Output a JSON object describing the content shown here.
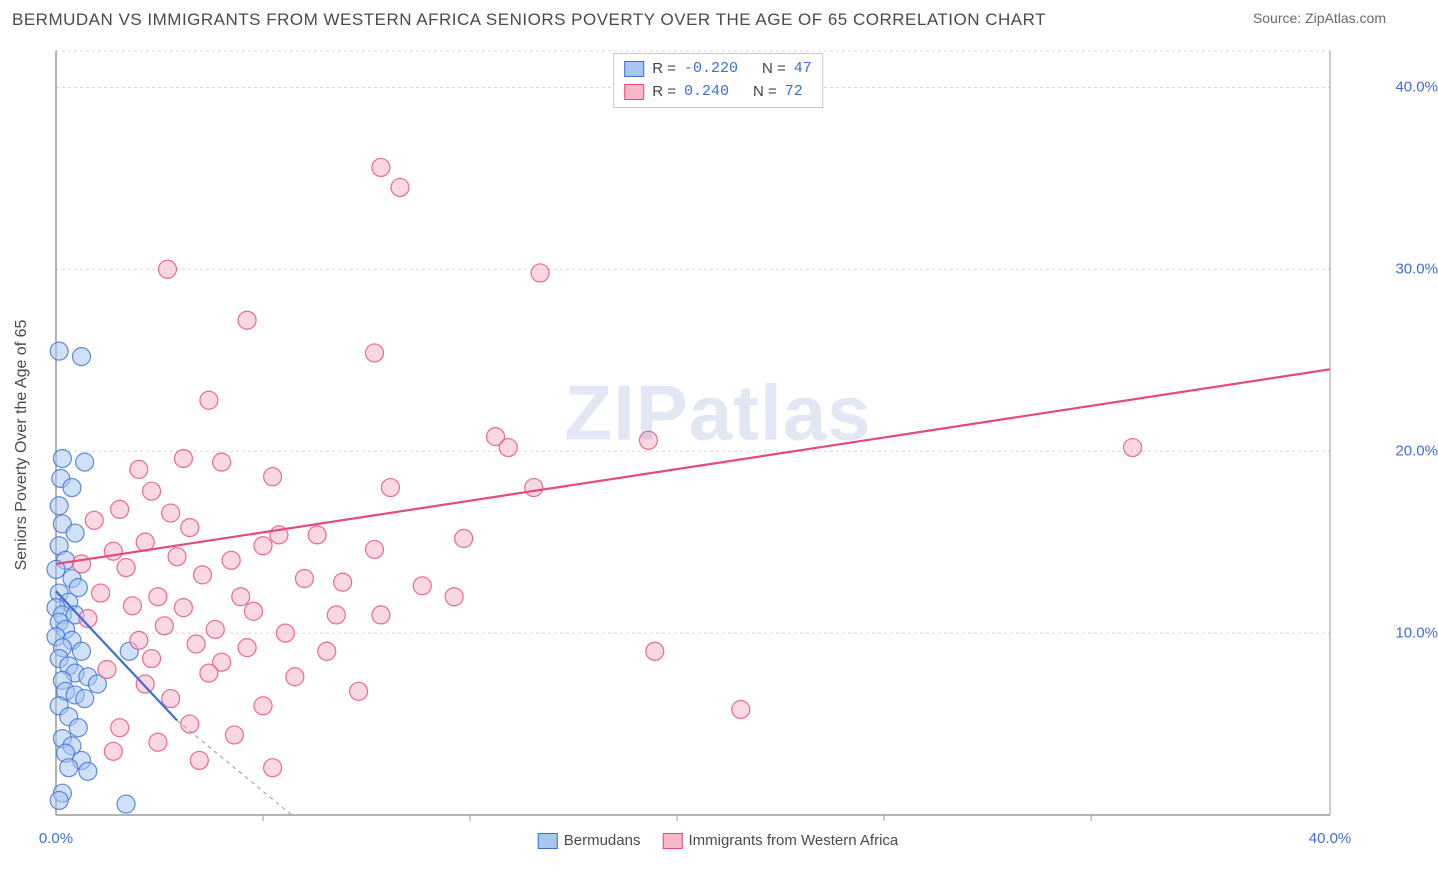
{
  "title": "BERMUDAN VS IMMIGRANTS FROM WESTERN AFRICA SENIORS POVERTY OVER THE AGE OF 65 CORRELATION CHART",
  "source": "Source: ZipAtlas.com",
  "y_axis_label": "Seniors Poverty Over the Age of 65",
  "watermark": "ZIPatlas",
  "chart": {
    "type": "scatter",
    "xlim": [
      0,
      40
    ],
    "ylim": [
      0,
      42
    ],
    "x_ticks": [
      0,
      40
    ],
    "y_ticks": [
      10,
      20,
      30,
      40
    ],
    "x_tick_labels": [
      "0.0%",
      "40.0%"
    ],
    "y_tick_labels": [
      "10.0%",
      "20.0%",
      "30.0%",
      "40.0%"
    ],
    "grid_x_positions": [
      6.5,
      13,
      19.5,
      26,
      32.5
    ],
    "grid_color": "#d5d5d5",
    "axis_color": "#9a9a9a",
    "background_color": "#ffffff",
    "marker_radius": 9,
    "marker_opacity": 0.55,
    "line_width": 2.2,
    "label_fontsize": 16,
    "tick_fontsize": 15
  },
  "series": [
    {
      "name": "Bermudans",
      "color_fill": "#a7c7f0",
      "color_stroke": "#3d6fd6",
      "R": "-0.220",
      "N": "47",
      "trend": {
        "x1": 0,
        "y1": 12.3,
        "x2": 3.8,
        "y2": 5.2,
        "dash_x2": 7.4,
        "dash_y2": -1.5
      },
      "points": [
        [
          0.1,
          25.5
        ],
        [
          0.8,
          25.2
        ],
        [
          0.2,
          19.6
        ],
        [
          0.9,
          19.4
        ],
        [
          0.15,
          18.5
        ],
        [
          0.5,
          18.0
        ],
        [
          0.1,
          17.0
        ],
        [
          0.2,
          16.0
        ],
        [
          0.6,
          15.5
        ],
        [
          0.1,
          14.8
        ],
        [
          0.3,
          14.0
        ],
        [
          0.0,
          13.5
        ],
        [
          0.5,
          13.0
        ],
        [
          0.7,
          12.5
        ],
        [
          0.1,
          12.2
        ],
        [
          0.4,
          11.7
        ],
        [
          0.0,
          11.4
        ],
        [
          0.2,
          11.0
        ],
        [
          0.6,
          11.0
        ],
        [
          0.1,
          10.6
        ],
        [
          0.3,
          10.2
        ],
        [
          0.0,
          9.8
        ],
        [
          0.5,
          9.6
        ],
        [
          0.2,
          9.2
        ],
        [
          0.8,
          9.0
        ],
        [
          2.3,
          9.0
        ],
        [
          0.1,
          8.6
        ],
        [
          0.4,
          8.2
        ],
        [
          0.6,
          7.8
        ],
        [
          1.0,
          7.6
        ],
        [
          0.2,
          7.4
        ],
        [
          1.3,
          7.2
        ],
        [
          0.3,
          6.8
        ],
        [
          0.6,
          6.6
        ],
        [
          0.9,
          6.4
        ],
        [
          0.1,
          6.0
        ],
        [
          0.4,
          5.4
        ],
        [
          0.7,
          4.8
        ],
        [
          0.2,
          4.2
        ],
        [
          0.5,
          3.8
        ],
        [
          0.3,
          3.4
        ],
        [
          0.8,
          3.0
        ],
        [
          0.4,
          2.6
        ],
        [
          1.0,
          2.4
        ],
        [
          0.2,
          1.2
        ],
        [
          0.1,
          0.8
        ],
        [
          2.2,
          0.6
        ]
      ]
    },
    {
      "name": "Immigrants from Western Africa",
      "color_fill": "#f5b8c8",
      "color_stroke": "#e64a7a",
      "R": "0.240",
      "N": "72",
      "trend": {
        "x1": 0,
        "y1": 13.8,
        "x2": 40,
        "y2": 24.5
      },
      "points": [
        [
          10.2,
          35.6
        ],
        [
          10.8,
          34.5
        ],
        [
          3.5,
          30.0
        ],
        [
          15.2,
          29.8
        ],
        [
          6.0,
          27.2
        ],
        [
          10.0,
          25.4
        ],
        [
          4.8,
          22.8
        ],
        [
          18.6,
          20.6
        ],
        [
          33.8,
          20.2
        ],
        [
          13.8,
          20.8
        ],
        [
          14.2,
          20.2
        ],
        [
          4.0,
          19.6
        ],
        [
          5.2,
          19.4
        ],
        [
          2.6,
          19.0
        ],
        [
          3.0,
          17.8
        ],
        [
          6.8,
          18.6
        ],
        [
          10.5,
          18.0
        ],
        [
          15.0,
          18.0
        ],
        [
          2.0,
          16.8
        ],
        [
          3.6,
          16.6
        ],
        [
          1.2,
          16.2
        ],
        [
          4.2,
          15.8
        ],
        [
          7.0,
          15.4
        ],
        [
          8.2,
          15.4
        ],
        [
          12.8,
          15.2
        ],
        [
          2.8,
          15.0
        ],
        [
          6.5,
          14.8
        ],
        [
          10.0,
          14.6
        ],
        [
          1.8,
          14.5
        ],
        [
          3.8,
          14.2
        ],
        [
          5.5,
          14.0
        ],
        [
          0.8,
          13.8
        ],
        [
          2.2,
          13.6
        ],
        [
          4.6,
          13.2
        ],
        [
          7.8,
          13.0
        ],
        [
          9.0,
          12.8
        ],
        [
          11.5,
          12.6
        ],
        [
          1.4,
          12.2
        ],
        [
          3.2,
          12.0
        ],
        [
          5.8,
          12.0
        ],
        [
          12.5,
          12.0
        ],
        [
          2.4,
          11.5
        ],
        [
          4.0,
          11.4
        ],
        [
          6.2,
          11.2
        ],
        [
          8.8,
          11.0
        ],
        [
          10.2,
          11.0
        ],
        [
          1.0,
          10.8
        ],
        [
          3.4,
          10.4
        ],
        [
          5.0,
          10.2
        ],
        [
          7.2,
          10.0
        ],
        [
          2.6,
          9.6
        ],
        [
          4.4,
          9.4
        ],
        [
          6.0,
          9.2
        ],
        [
          8.5,
          9.0
        ],
        [
          18.8,
          9.0
        ],
        [
          3.0,
          8.6
        ],
        [
          5.2,
          8.4
        ],
        [
          1.6,
          8.0
        ],
        [
          4.8,
          7.8
        ],
        [
          7.5,
          7.6
        ],
        [
          2.8,
          7.2
        ],
        [
          9.5,
          6.8
        ],
        [
          3.6,
          6.4
        ],
        [
          6.5,
          6.0
        ],
        [
          21.5,
          5.8
        ],
        [
          4.2,
          5.0
        ],
        [
          2.0,
          4.8
        ],
        [
          5.6,
          4.4
        ],
        [
          3.2,
          4.0
        ],
        [
          1.8,
          3.5
        ],
        [
          4.5,
          3.0
        ],
        [
          6.8,
          2.6
        ]
      ]
    }
  ],
  "legend_top": {
    "rows": [
      {
        "swatch_fill": "#a7c7f0",
        "swatch_stroke": "#3d6fd6",
        "r_label": "R =",
        "r_val": "-0.220",
        "n_label": "N =",
        "n_val": "47"
      },
      {
        "swatch_fill": "#f5b8c8",
        "swatch_stroke": "#e64a7a",
        "r_label": "R =",
        "r_val": " 0.240",
        "n_label": "N =",
        "n_val": "72"
      }
    ]
  },
  "legend_bottom": {
    "items": [
      {
        "swatch_fill": "#a7c7f0",
        "swatch_stroke": "#3d6fd6",
        "label": "Bermudans"
      },
      {
        "swatch_fill": "#f5b8c8",
        "swatch_stroke": "#e64a7a",
        "label": "Immigrants from Western Africa"
      }
    ]
  }
}
